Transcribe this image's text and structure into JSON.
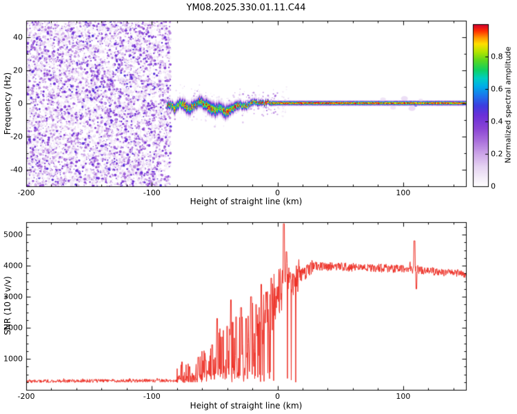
{
  "chart_data": [
    {
      "type": "heatmap",
      "title": "YM08.2025.330.01.11.C44",
      "xlabel": "Height of straight line (km)",
      "ylabel": "Frequency (Hz)",
      "xlim": [
        -200,
        150
      ],
      "ylim": [
        -50,
        50
      ],
      "xticks": [
        -200,
        -100,
        0,
        100
      ],
      "yticks": [
        -40,
        -20,
        0,
        20,
        40
      ],
      "x_minor_step": 20,
      "y_minor_step": 10,
      "grid": false,
      "noise_region": {
        "x_start": -200,
        "x_end": -85,
        "intensity_range": [
          0.03,
          0.47
        ]
      },
      "colorbar": {
        "label": "Normalized spectral amplitude",
        "ticks": [
          "0",
          "0.2",
          "0.4",
          "0.6",
          "0.8"
        ],
        "tick_values": [
          0,
          0.2,
          0.4,
          0.6,
          0.8
        ],
        "range": [
          0,
          1
        ],
        "stops": [
          [
            0.0,
            "#ffffff"
          ],
          [
            0.05,
            "#f5eef9"
          ],
          [
            0.12,
            "#e6d4f2"
          ],
          [
            0.2,
            "#cda6e8"
          ],
          [
            0.28,
            "#ab71dc"
          ],
          [
            0.36,
            "#8a44d4"
          ],
          [
            0.44,
            "#6a2fd8"
          ],
          [
            0.5,
            "#3d3ee0"
          ],
          [
            0.56,
            "#1c74ec"
          ],
          [
            0.62,
            "#00aee8"
          ],
          [
            0.67,
            "#00cfc0"
          ],
          [
            0.72,
            "#10d060"
          ],
          [
            0.78,
            "#5cd81e"
          ],
          [
            0.83,
            "#b2e400"
          ],
          [
            0.88,
            "#ffdf00"
          ],
          [
            0.92,
            "#ff9300"
          ],
          [
            0.96,
            "#ff2d00"
          ],
          [
            1.0,
            "#cf0030"
          ]
        ]
      },
      "signal_track": [
        {
          "x": -86,
          "f": -1.0,
          "amp": 0.95,
          "w": 2.2
        },
        {
          "x": -82,
          "f": -2.5,
          "amp": 0.9,
          "w": 2.8
        },
        {
          "x": -78,
          "f": 0.5,
          "amp": 0.95,
          "w": 2.4
        },
        {
          "x": -74,
          "f": -1.5,
          "amp": 0.9,
          "w": 3.0
        },
        {
          "x": -70,
          "f": -3.0,
          "amp": 0.9,
          "w": 3.2
        },
        {
          "x": -66,
          "f": -1.0,
          "amp": 0.95,
          "w": 2.6
        },
        {
          "x": -62,
          "f": 1.5,
          "amp": 0.9,
          "w": 2.8
        },
        {
          "x": -58,
          "f": -0.5,
          "amp": 0.95,
          "w": 3.0
        },
        {
          "x": -54,
          "f": -2.0,
          "amp": 0.9,
          "w": 3.4
        },
        {
          "x": -50,
          "f": -4.0,
          "amp": 0.9,
          "w": 3.6
        },
        {
          "x": -46,
          "f": -2.5,
          "amp": 0.92,
          "w": 3.0
        },
        {
          "x": -42,
          "f": -5.0,
          "amp": 0.9,
          "w": 3.4
        },
        {
          "x": -38,
          "f": -3.5,
          "amp": 0.95,
          "w": 2.8
        },
        {
          "x": -34,
          "f": -1.5,
          "amp": 0.95,
          "w": 2.4
        },
        {
          "x": -30,
          "f": -0.5,
          "amp": 0.95,
          "w": 2.2
        },
        {
          "x": -26,
          "f": -1.5,
          "amp": 0.95,
          "w": 2.0
        },
        {
          "x": -22,
          "f": 0.0,
          "amp": 0.97,
          "w": 1.8
        },
        {
          "x": -18,
          "f": 1.0,
          "amp": 0.97,
          "w": 1.6
        },
        {
          "x": -14,
          "f": 0.5,
          "amp": 1.0,
          "w": 1.5
        },
        {
          "x": -8,
          "f": 0.5,
          "amp": 1.0,
          "w": 1.3
        },
        {
          "x": 0,
          "f": 0.5,
          "amp": 1.0,
          "w": 1.1
        },
        {
          "x": 150,
          "f": 0.5,
          "amp": 1.0,
          "w": 1.1
        }
      ],
      "halo_blobs": [
        {
          "x": 84,
          "f": 2.5,
          "r": 4,
          "v": 0.13
        },
        {
          "x": 92,
          "f": -2.5,
          "r": 4,
          "v": 0.12
        },
        {
          "x": 101,
          "f": 3.0,
          "r": 5,
          "v": 0.15
        },
        {
          "x": 107,
          "f": -3.0,
          "r": 5,
          "v": 0.16
        },
        {
          "x": 110,
          "f": -1.5,
          "r": 2,
          "v": 0.5
        },
        {
          "x": 114,
          "f": 2.0,
          "r": 3,
          "v": 0.13
        }
      ]
    },
    {
      "type": "line",
      "title": "",
      "xlabel": "Height of straight line (km)",
      "ylabel": "SNR (10 * v/v)",
      "xlim": [
        -200,
        150
      ],
      "ylim": [
        0,
        5400
      ],
      "xticks": [
        -200,
        -100,
        0,
        100
      ],
      "yticks": [
        1000,
        2000,
        3000,
        4000,
        5000
      ],
      "x_minor_step": 20,
      "y_minor_step": 250,
      "line_color": "#ee2e24",
      "segments": {
        "fields": [
          "x0",
          "x1",
          "y0",
          "y1",
          "noise",
          "spike_p",
          "spike_amp",
          "dip_p"
        ],
        "rows": [
          [
            -200,
            -80,
            280,
            300,
            55,
            0.02,
            120,
            0
          ],
          [
            -80,
            -62,
            320,
            380,
            130,
            0.22,
            550,
            0.05
          ],
          [
            -62,
            -48,
            360,
            480,
            180,
            0.28,
            900,
            0.08
          ],
          [
            -48,
            -38,
            480,
            620,
            260,
            0.32,
            1500,
            0.1
          ],
          [
            -38,
            -28,
            620,
            850,
            380,
            0.38,
            1700,
            0.12
          ],
          [
            -28,
            -18,
            850,
            1250,
            500,
            0.42,
            1700,
            0.14
          ],
          [
            -18,
            -10,
            1250,
            1900,
            650,
            0.45,
            1500,
            0.15
          ],
          [
            -10,
            -2,
            1900,
            2700,
            700,
            0.45,
            1200,
            0.15
          ],
          [
            -2,
            8,
            2800,
            3250,
            600,
            0.4,
            1000,
            0.12
          ],
          [
            8,
            18,
            3200,
            3550,
            420,
            0.35,
            700,
            0.06
          ],
          [
            18,
            28,
            3650,
            3950,
            240,
            0.25,
            300,
            0
          ],
          [
            28,
            60,
            3980,
            3950,
            140,
            0.2,
            150,
            0
          ],
          [
            60,
            105,
            3950,
            3890,
            140,
            0.2,
            150,
            0
          ],
          [
            105,
            112,
            3900,
            3850,
            180,
            0.25,
            250,
            0
          ],
          [
            112,
            150,
            3850,
            3720,
            125,
            0.2,
            140,
            0
          ]
        ]
      },
      "spikes": [
        {
          "x": -76,
          "v": 900
        },
        {
          "x": -70,
          "v": 750
        },
        {
          "x": -63,
          "v": 1050
        },
        {
          "x": -57,
          "v": 950
        },
        {
          "x": -52,
          "v": 1450
        },
        {
          "x": -48,
          "v": 2300
        },
        {
          "x": -44,
          "v": 1700
        },
        {
          "x": -40,
          "v": 2050
        },
        {
          "x": -37,
          "v": 2900
        },
        {
          "x": -33,
          "v": 2350
        },
        {
          "x": -29,
          "v": 2650
        },
        {
          "x": -25,
          "v": 2300
        },
        {
          "x": -21,
          "v": 3000
        },
        {
          "x": -17,
          "v": 2750
        },
        {
          "x": -13,
          "v": 3400
        },
        {
          "x": -9,
          "v": 3150
        },
        {
          "x": -5,
          "v": 3600
        },
        {
          "x": 5,
          "v": 5350
        },
        {
          "x": 7,
          "v": 4450
        },
        {
          "x": 109,
          "v": 4800
        },
        {
          "x": 110.5,
          "v": 3250
        }
      ]
    }
  ]
}
